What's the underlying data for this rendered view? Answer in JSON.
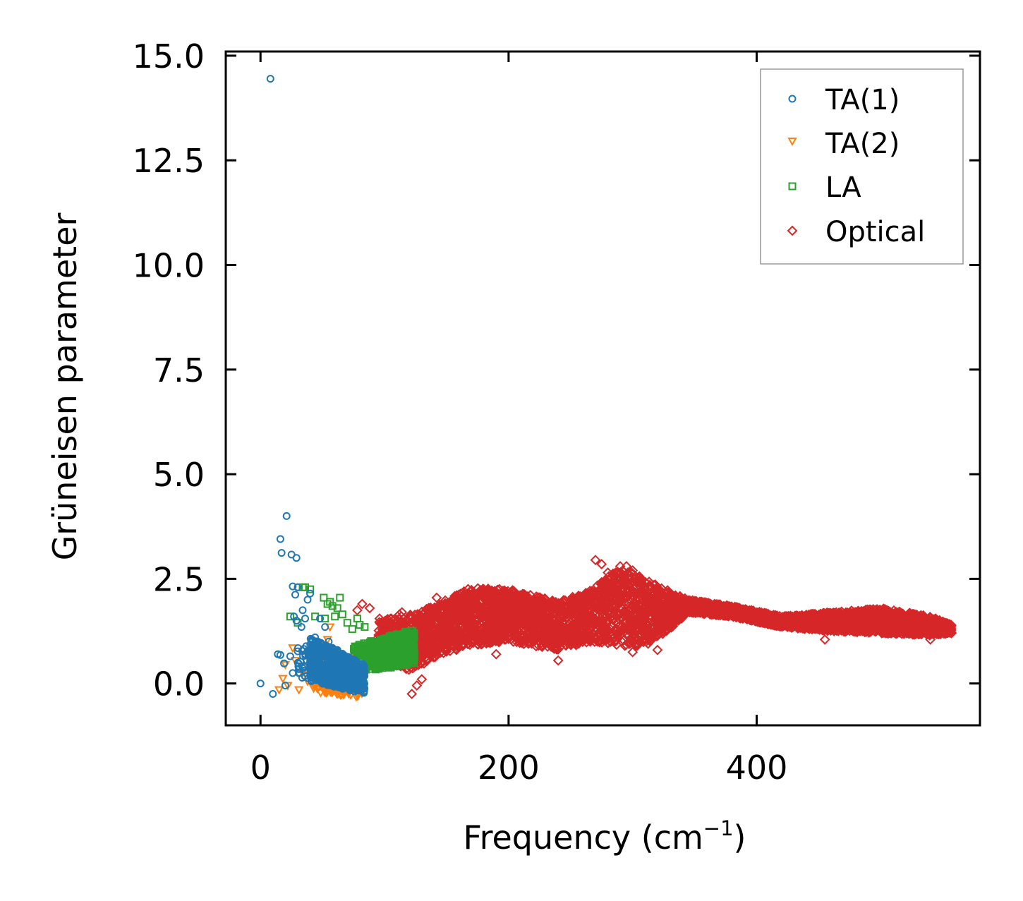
{
  "chart_data": {
    "type": "scatter",
    "title": "",
    "xlabel": "Frequency (cm",
    "xlabel_superscript": "−1",
    "xlabel_suffix": ")",
    "ylabel": "Grüneisen parameter",
    "xlim": [
      -28,
      580
    ],
    "ylim": [
      -1.0,
      15.1
    ],
    "xticks": [
      0,
      200,
      400
    ],
    "xtick_labels": [
      "0",
      "200",
      "400"
    ],
    "yticks": [
      0.0,
      2.5,
      5.0,
      7.5,
      10.0,
      12.5,
      15.0
    ],
    "ytick_labels": [
      "0.0",
      "2.5",
      "5.0",
      "7.5",
      "10.0",
      "12.5",
      "15.0"
    ],
    "grid": false,
    "legend_position": "top-right",
    "series": [
      {
        "name": "TA(1)",
        "marker": "circle",
        "color": "#1f77b4",
        "points": [
          [
            8,
            14.45
          ],
          [
            21,
            4.0
          ],
          [
            16,
            3.45
          ],
          [
            17,
            3.12
          ],
          [
            25,
            3.08
          ],
          [
            29,
            3.0
          ],
          [
            26,
            2.32
          ],
          [
            28,
            2.12
          ],
          [
            30,
            2.3
          ],
          [
            34,
            1.75
          ],
          [
            38,
            2.0
          ],
          [
            40,
            2.15
          ],
          [
            27,
            1.6
          ],
          [
            29,
            1.5
          ],
          [
            33,
            1.35
          ],
          [
            36,
            1.55
          ],
          [
            24,
            0.65
          ],
          [
            14,
            0.7
          ],
          [
            16,
            0.68
          ],
          [
            19,
            0.48
          ],
          [
            26,
            0.25
          ],
          [
            31,
            0.35
          ],
          [
            10,
            -0.25
          ],
          [
            20,
            -0.05
          ],
          [
            0,
            0.0
          ],
          [
            44,
            1.1
          ],
          [
            48,
            1.55
          ],
          [
            52,
            1.35
          ],
          [
            55,
            1.0
          ],
          [
            58,
            0.85
          ],
          [
            62,
            0.8
          ],
          [
            66,
            0.7
          ],
          [
            70,
            0.55
          ],
          [
            74,
            0.4
          ],
          [
            78,
            0.3
          ],
          [
            80,
            0.15
          ]
        ],
        "dense_band": {
          "x_from": 40,
          "x_to": 84,
          "y_top_start": 1.1,
          "y_top_end": 0.45,
          "y_bottom_start": 0.05,
          "y_bottom_end": -0.25,
          "count": 700,
          "extra_count": 60,
          "extra_x_range": [
            30,
            50
          ],
          "extra_y_range": [
            0.1,
            0.9
          ]
        }
      },
      {
        "name": "TA(2)",
        "marker": "triangle-down",
        "color": "#ff7f0e",
        "points": [
          [
            15,
            -0.15
          ],
          [
            18,
            0.12
          ],
          [
            20,
            0.45
          ],
          [
            22,
            -0.05
          ],
          [
            26,
            0.85
          ],
          [
            28,
            0.55
          ],
          [
            31,
            -0.15
          ],
          [
            34,
            0.25
          ],
          [
            38,
            0.05
          ],
          [
            42,
            0.4
          ],
          [
            44,
            -0.05
          ],
          [
            46,
            0.55
          ],
          [
            50,
            0.75
          ],
          [
            54,
            1.05
          ],
          [
            56,
            1.35
          ],
          [
            58,
            0.25
          ],
          [
            62,
            -0.25
          ],
          [
            66,
            -0.1
          ],
          [
            70,
            0.15
          ]
        ],
        "dense_band": {
          "x_from": 42,
          "x_to": 82,
          "y_top_start": 1.0,
          "y_top_end": 0.5,
          "y_bottom_start": -0.2,
          "y_bottom_end": -0.35,
          "count": 260,
          "extra_count": 0,
          "extra_x_range": [
            0,
            0
          ],
          "extra_y_range": [
            0,
            0
          ]
        }
      },
      {
        "name": "LA",
        "marker": "square",
        "color": "#2ca02c",
        "points": [
          [
            34,
            2.3
          ],
          [
            36,
            2.3
          ],
          [
            40,
            2.25
          ],
          [
            51,
            2.05
          ],
          [
            54,
            1.9
          ],
          [
            56,
            1.95
          ],
          [
            58,
            1.85
          ],
          [
            62,
            1.8
          ],
          [
            64,
            2.05
          ],
          [
            66,
            1.65
          ],
          [
            60,
            1.6
          ],
          [
            24,
            1.6
          ],
          [
            30,
            1.45
          ],
          [
            44,
            1.6
          ],
          [
            52,
            1.55
          ],
          [
            70,
            1.45
          ],
          [
            74,
            1.3
          ],
          [
            78,
            1.55
          ],
          [
            80,
            1.4
          ],
          [
            84,
            1.35
          ]
        ],
        "dense_band": {
          "x_from": 75,
          "x_to": 124,
          "y_top_start": 0.9,
          "y_top_end": 1.3,
          "y_bottom_start": 0.25,
          "y_bottom_end": 0.45,
          "count": 520,
          "extra_count": 0,
          "extra_x_range": [
            0,
            0
          ],
          "extra_y_range": [
            0,
            0
          ]
        }
      },
      {
        "name": "Optical",
        "marker": "diamond",
        "color": "#d62728",
        "points": [
          [
            78,
            1.75
          ],
          [
            82,
            1.9
          ],
          [
            88,
            1.8
          ],
          [
            96,
            1.55
          ],
          [
            112,
            1.65
          ],
          [
            114,
            1.7
          ],
          [
            126,
            1.55
          ],
          [
            140,
            1.8
          ],
          [
            142,
            2.05
          ],
          [
            122,
            -0.25
          ],
          [
            126,
            -0.05
          ],
          [
            130,
            0.1
          ],
          [
            270,
            2.95
          ],
          [
            275,
            2.85
          ],
          [
            280,
            2.65
          ],
          [
            190,
            0.7
          ],
          [
            240,
            0.55
          ],
          [
            300,
            0.75
          ],
          [
            320,
            0.8
          ],
          [
            455,
            1.05
          ],
          [
            540,
            1.05
          ],
          [
            553,
            1.3
          ],
          [
            290,
            2.8
          ],
          [
            295,
            2.8
          ],
          [
            300,
            2.7
          ]
        ],
        "dense_band": {
          "x_from": 95,
          "x_to": 557,
          "y_top_start": 1.6,
          "y_top_end": 1.4,
          "y_bottom_start": 0.55,
          "y_bottom_end": 1.1,
          "count": 5200,
          "extra_count": 0,
          "extra_x_range": [
            0,
            0
          ],
          "extra_y_range": [
            0,
            0
          ]
        },
        "envelope": [
          [
            95,
            0.55,
            1.5
          ],
          [
            120,
            0.3,
            1.65
          ],
          [
            140,
            0.6,
            1.85
          ],
          [
            170,
            0.9,
            2.3
          ],
          [
            200,
            1.0,
            2.25
          ],
          [
            240,
            0.8,
            1.95
          ],
          [
            265,
            1.0,
            2.2
          ],
          [
            290,
            0.9,
            2.8
          ],
          [
            310,
            0.9,
            2.5
          ],
          [
            330,
            1.3,
            2.2
          ],
          [
            345,
            1.7,
            2.0
          ],
          [
            380,
            1.6,
            1.85
          ],
          [
            420,
            1.35,
            1.6
          ],
          [
            460,
            1.25,
            1.7
          ],
          [
            500,
            1.2,
            1.8
          ],
          [
            540,
            1.15,
            1.6
          ],
          [
            557,
            1.2,
            1.4
          ]
        ]
      }
    ]
  }
}
